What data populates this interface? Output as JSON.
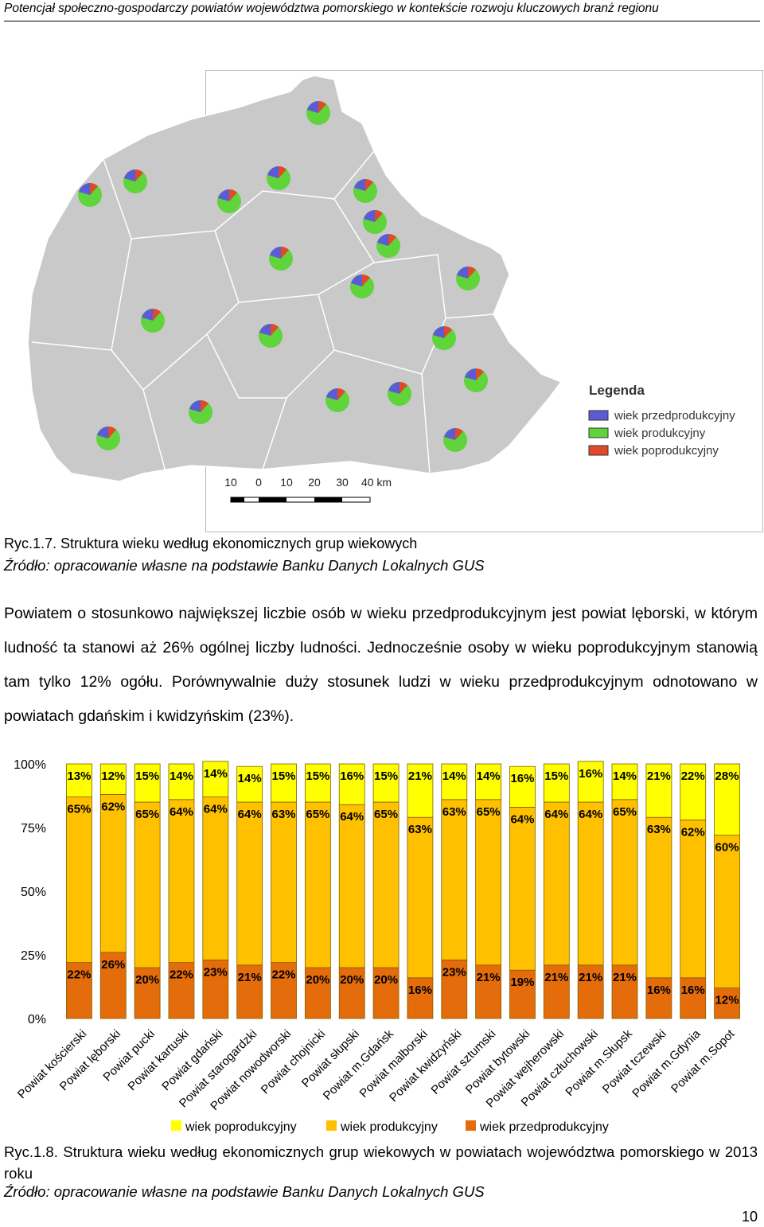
{
  "header": "Potencjał społeczno-gospodarczy powiatów województwa pomorskiego w kontekście rozwoju kluczowych branż regionu",
  "map": {
    "legend_title": "Legenda",
    "legend": [
      "wiek przedprodukcyjny",
      "wiek produkcyjny",
      "wiek poprodukcyjny"
    ],
    "scale": [
      "10",
      "0",
      "10",
      "20",
      "30",
      "40 km"
    ]
  },
  "figure1": {
    "caption": "Ryc.1.7. Struktura wieku według ekonomicznych grup wiekowych",
    "source": "Źródło: opracowanie własne na podstawie Banku Danych Lokalnych GUS"
  },
  "paragraph": "Powiatem o stosunkowo największej liczbie osób w wieku przedprodukcyjnym jest powiat lęborski, w którym ludność ta stanowi aż 26% ogólnej liczby ludności. Jednocześnie osoby w wieku poprodukcyjnym stanowią tam tylko 12% ogółu. Porównywalnie duży stosunek ludzi w wieku przedprodukcyjnym odnotowano w powiatach gdańskim i kwidzyńskim (23%).",
  "chart_data": {
    "type": "stacked_bar",
    "categories": [
      "Powiat kościerski",
      "Powiat lęborski",
      "Powiat pucki",
      "Powiat kartuski",
      "Powiat gdański",
      "Powiat starogardzki",
      "Powiat nowodworski",
      "Powiat chojnicki",
      "Powiat słupski",
      "Powiat m.Gdańsk",
      "Powiat malborski",
      "Powiat kwidzyński",
      "Powiat sztumski",
      "Powiat bytowski",
      "Powiat wejherowski",
      "Powiat człuchowski",
      "Powiat m.Słupsk",
      "Powiat tczewski",
      "Powiat m.Gdynia",
      "Powiat m.Sopot"
    ],
    "series": [
      {
        "name": "wiek poprodukcyjny",
        "color": "#ffff00",
        "values": [
          13,
          12,
          15,
          14,
          14,
          14,
          15,
          15,
          16,
          15,
          21,
          14,
          14,
          16,
          15,
          16,
          14,
          21,
          22,
          28
        ],
        "value_labels": [
          "13%",
          "12%",
          "15%",
          "14%",
          "14%",
          "14%",
          "15%",
          "15%",
          "16%",
          "15%",
          "21%",
          "14%",
          "14%",
          "16%",
          "15%",
          "16%",
          "14%",
          "21%",
          "22%",
          "28%"
        ]
      },
      {
        "name": "wiek produkcyjny",
        "color": "#ffc000",
        "values": [
          65,
          62,
          65,
          64,
          64,
          64,
          63,
          65,
          64,
          65,
          63,
          63,
          65,
          64,
          64,
          64,
          65,
          63,
          62,
          60
        ],
        "value_labels": [
          "65%",
          "62%",
          "65%",
          "64%",
          "64%",
          "64%",
          "63%",
          "65%",
          "64%",
          "65%",
          "63%",
          "63%",
          "65%",
          "64%",
          "64%",
          "64%",
          "65%",
          "63%",
          "62%",
          "60%"
        ]
      },
      {
        "name": "wiek przedprodukcyjny",
        "color": "#e46c0a",
        "values": [
          22,
          26,
          20,
          22,
          23,
          21,
          22,
          20,
          20,
          20,
          16,
          23,
          21,
          19,
          21,
          21,
          21,
          16,
          16,
          12
        ],
        "value_labels": [
          "22%",
          "26%",
          "20%",
          "22%",
          "23%",
          "21%",
          "22%",
          "20%",
          "20%",
          "20%",
          "16%",
          "23%",
          "21%",
          "19%",
          "21%",
          "21%",
          "21%",
          "16%",
          "16%",
          "12%"
        ]
      }
    ],
    "ylim": [
      0,
      100
    ],
    "yticks": [
      {
        "value": 0,
        "label": "0%"
      },
      {
        "value": 25,
        "label": "25%"
      },
      {
        "value": 50,
        "label": "50%"
      },
      {
        "value": 75,
        "label": "75%"
      },
      {
        "value": 100,
        "label": "100%"
      }
    ],
    "grid": false,
    "legend": "bottom"
  },
  "figure2": {
    "caption": "Ryc.1.8. Struktura wieku według ekonomicznych grup wiekowych w powiatach województwa pomorskiego w 2013 roku",
    "source": "Źródło: opracowanie własne na podstawie Banku Danych Lokalnych GUS"
  },
  "page_number": "10"
}
